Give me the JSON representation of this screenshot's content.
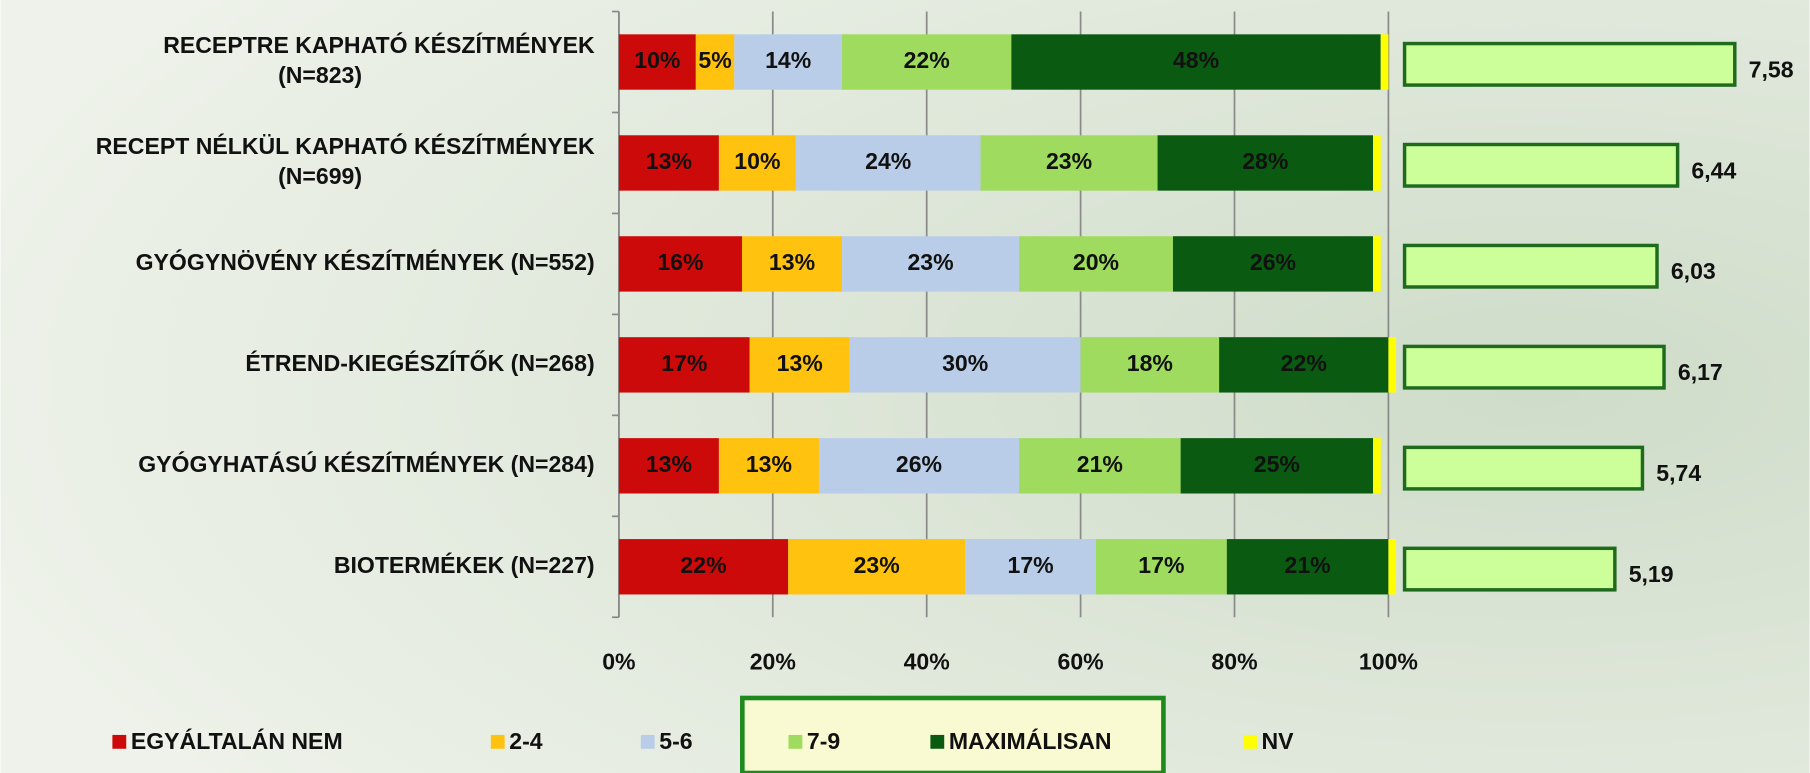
{
  "chart_data": [
    {
      "type": "stacked-barh",
      "categories": [
        [
          "RECEPTRE KAPHATÓ KÉSZÍTMÉNYEK",
          "(N=823)"
        ],
        [
          "RECEPT NÉLKÜL KAPHATÓ KÉSZÍTMÉNYEK",
          "(N=699)"
        ],
        [
          "GYÓGYNÖVÉNY KÉSZÍTMÉNYEK (N=552)"
        ],
        [
          "ÉTREND-KIEGÉSZÍTŐK (N=268)"
        ],
        [
          "GYÓGYHATÁSÚ KÉSZÍTMÉNYEK (N=284)"
        ],
        [
          "BIOTERMÉKEK (N=227)"
        ]
      ],
      "series": [
        {
          "name": "EGYÁLTALÁN NEM",
          "color": "#cc0a0a",
          "values": [
            10,
            13,
            16,
            17,
            13,
            22
          ],
          "value_labels": [
            "10%",
            "13%",
            "16%",
            "17%",
            "13%",
            "22%"
          ]
        },
        {
          "name": "2-4",
          "color": "#ffc20e",
          "values": [
            5,
            10,
            13,
            13,
            13,
            23
          ],
          "value_labels": [
            "5%",
            "10%",
            "13%",
            "13%",
            "13%",
            "23%"
          ]
        },
        {
          "name": "5-6",
          "color": "#b9cde8",
          "values": [
            14,
            24,
            23,
            30,
            26,
            17
          ],
          "value_labels": [
            "14%",
            "24%",
            "23%",
            "30%",
            "26%",
            "17%"
          ]
        },
        {
          "name": "7-9",
          "color": "#9edb5e",
          "values": [
            22,
            23,
            20,
            18,
            21,
            17
          ],
          "value_labels": [
            "22%",
            "23%",
            "20%",
            "18%",
            "21%",
            "17%"
          ]
        },
        {
          "name": "MAXIMÁLISAN",
          "color": "#0b5a12",
          "values": [
            48,
            28,
            26,
            22,
            25,
            21
          ],
          "value_labels": [
            "48%",
            "28%",
            "26%",
            "22%",
            "25%",
            "21%"
          ]
        },
        {
          "name": "NV",
          "color": "#ffff00",
          "values": [
            1,
            1,
            1,
            1,
            1,
            1
          ]
        }
      ],
      "xlim": [
        0,
        100
      ],
      "xticks": [
        {
          "value": 0,
          "label": "0%"
        },
        {
          "value": 20,
          "label": "20%"
        },
        {
          "value": 40,
          "label": "40%"
        },
        {
          "value": 60,
          "label": "60%"
        },
        {
          "value": 80,
          "label": "80%"
        },
        {
          "value": 100,
          "label": "100%"
        }
      ],
      "grid": true
    },
    {
      "type": "barh",
      "values": [
        7.58,
        6.44,
        6.03,
        6.17,
        5.74,
        5.19
      ],
      "value_labels": [
        "7,58",
        "6,44",
        "6,03",
        "6,17",
        "5,74",
        "5,19"
      ],
      "color": "#ccff99",
      "edgecolor": "#1e6b1e",
      "xlim": [
        1,
        10
      ]
    }
  ]
}
